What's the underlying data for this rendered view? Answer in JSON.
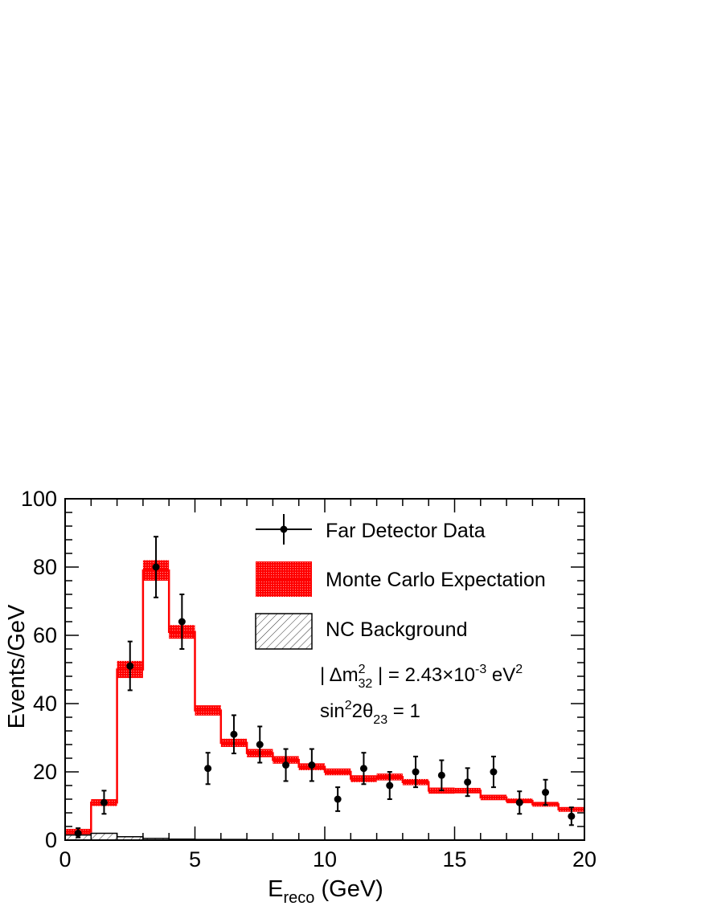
{
  "chart_data": {
    "type": "histogram",
    "xlabel_main": "E",
    "xlabel_sub": "reco",
    "xlabel_unit": " (GeV)",
    "ylabel": "Events/GeV",
    "xlim": [
      0,
      20
    ],
    "ylim": [
      0,
      100
    ],
    "x_ticks": [
      0,
      5,
      10,
      15,
      20
    ],
    "y_ticks": [
      0,
      20,
      40,
      60,
      80,
      100
    ],
    "x_tick_labels": [
      "0",
      "5",
      "10",
      "15",
      "20"
    ],
    "y_tick_labels": [
      "0",
      "20",
      "40",
      "60",
      "80",
      "100"
    ],
    "bin_width": 1,
    "bin_edges": [
      0,
      1,
      2,
      3,
      4,
      5,
      6,
      7,
      8,
      9,
      10,
      11,
      12,
      13,
      14,
      15,
      16,
      17,
      18,
      19,
      20
    ],
    "mc_expectation": [
      2.5,
      11,
      50,
      79,
      61,
      38,
      28.5,
      25.5,
      23.5,
      21.5,
      20,
      18,
      18.5,
      17,
      14.5,
      14.5,
      12.5,
      11.5,
      10.5,
      9
    ],
    "mc_uncertainty": [
      0.8,
      1,
      2.5,
      3,
      2,
      1.5,
      1.2,
      1.2,
      1.1,
      1,
      1,
      1,
      1,
      0.9,
      0.9,
      0.8,
      0.8,
      0.7,
      0.7,
      0.7
    ],
    "nc_background": [
      1.5,
      2,
      1,
      0.5,
      0.3,
      0.2,
      0.2,
      0.1,
      0.1,
      0.1,
      0.1,
      0.1,
      0.1,
      0.1,
      0.1,
      0.1,
      0.1,
      0.1,
      0.1,
      0.1
    ],
    "data": {
      "x": [
        0.5,
        1.5,
        2.5,
        3.5,
        4.5,
        5.5,
        6.5,
        7.5,
        8.5,
        9.5,
        10.5,
        11.5,
        12.5,
        13.5,
        14.5,
        15.5,
        16.5,
        17.5,
        18.5,
        19.5
      ],
      "y": [
        2,
        11,
        51,
        80,
        64,
        21,
        31,
        28,
        22,
        22,
        12,
        21,
        16,
        20,
        19,
        17,
        20,
        11,
        14,
        7
      ],
      "err_up": [
        1.5,
        3.5,
        7.2,
        8.9,
        8,
        4.6,
        5.6,
        5.3,
        4.7,
        4.7,
        3.5,
        4.6,
        4,
        4.5,
        4.4,
        4.1,
        4.5,
        3.3,
        3.7,
        2.6
      ],
      "err_down": [
        1.2,
        3.3,
        7.1,
        8.9,
        8,
        4.6,
        5.6,
        5.3,
        4.7,
        4.7,
        3.5,
        4.6,
        4,
        4.5,
        4.4,
        4.1,
        4.5,
        3.3,
        3.7,
        2.6
      ]
    },
    "legend": {
      "position": "top-right",
      "data_label": "Far Detector Data",
      "mc_label": "Monte Carlo Expectation",
      "nc_label": "NC Background"
    },
    "annotation": {
      "line1_prefix": "| Δm",
      "line1_sup": "2",
      "line1_sub": "32",
      "line1_mid": " | = 2.43×10",
      "line1_exp": "-3",
      "line1_unit": " eV",
      "line1_unit_sup": "2",
      "line2_prefix": "sin",
      "line2_sup": "2",
      "line2_mid": "2θ",
      "line2_sub": "23",
      "line2_suffix": " = 1"
    },
    "colors": {
      "mc": "#ff0000",
      "mc_band": "#ff1a1a",
      "data": "#000000",
      "nc": "#000000"
    }
  }
}
